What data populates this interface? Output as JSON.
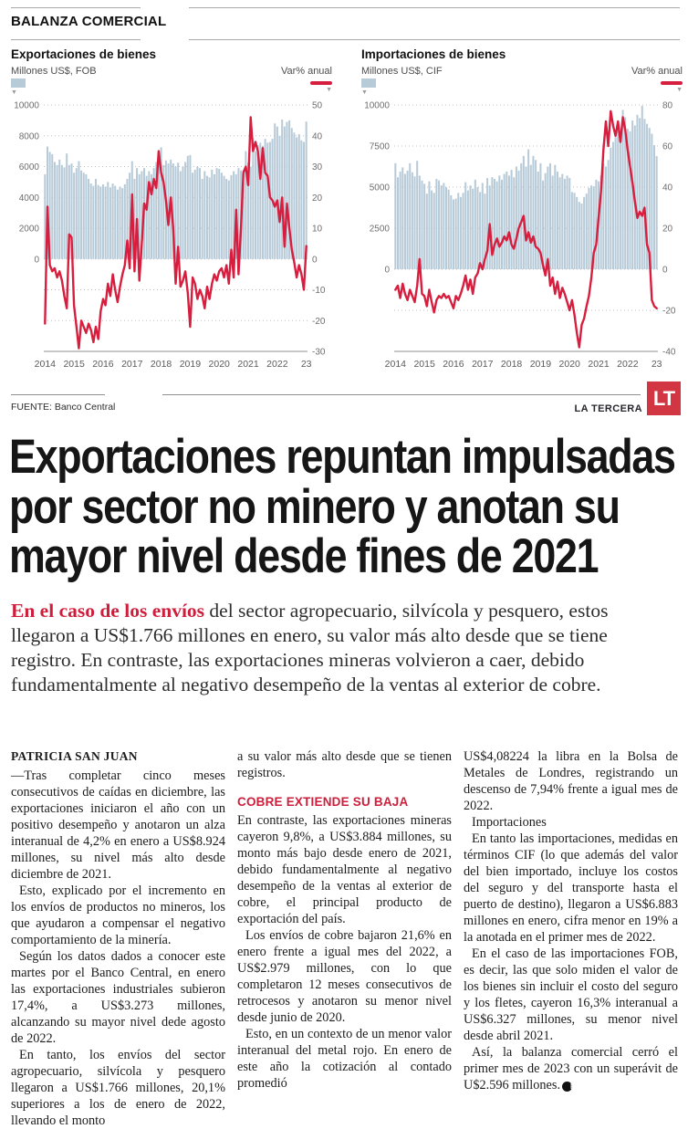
{
  "kicker": "BALANZA COMERCIAL",
  "source": "FUENTE: Banco Central",
  "brand": {
    "name": "LA TERCERA",
    "logo": "LT"
  },
  "headline_lines": "Exportaciones repuntan impulsadas\npor sector no minero y anotan su\nmayor nivel desde fines de 2021",
  "lede": {
    "lead_in": "En el caso de los envíos",
    "rest": " del sector agropecuario, silvícola y pesquero, estos llegaron a US$1.766 millones en enero, su valor más alto desde que se tiene registro. En contraste, las exportaciones mineras volvieron a caer, debido fundamentalmente al negativo desempeño de la ventas al exterior de cobre."
  },
  "columns": [
    {
      "blocks": [
        {
          "type": "byline",
          "text": "PATRICIA SAN JUAN"
        },
        {
          "type": "p",
          "noindent": true,
          "text": "—Tras completar cinco meses consecutivos de caídas en diciembre, las exportaciones iniciaron el año con un positivo desempeño y anotaron un alza interanual de 4,2% en enero a US$8.924 millones, su nivel más alto desde diciembre de 2021."
        },
        {
          "type": "p",
          "text": "Esto, explicado por el incremento en los envíos de productos no mineros, los que ayudaron a compensar el negativo comportamiento de la minería."
        },
        {
          "type": "p",
          "text": "Según los datos dados a conocer este martes por el Banco Central, en enero las exportaciones industriales subieron 17,4%, a US$3.273 millones, alcanzando su mayor nivel dede agosto de 2022."
        },
        {
          "type": "p",
          "text": "En tanto, los envíos del sector agropecuario, silvícola y pesquero llegaron a US$1.766 millones, 20,1% superiores a los de enero de 2022, llevando el monto"
        }
      ]
    },
    {
      "blocks": [
        {
          "type": "p",
          "noindent": true,
          "text": "a su valor más alto desde que se tienen registros."
        },
        {
          "type": "subhead",
          "text": "COBRE EXTIENDE SU BAJA"
        },
        {
          "type": "p",
          "noindent": true,
          "text": "En contraste, las exportaciones mineras cayeron 9,8%, a US$3.884 millones, su monto más bajo desde enero de 2021, debido fundamentalmente al negativo desempeño de la ventas al exterior de cobre, el principal producto de exportación del país."
        },
        {
          "type": "p",
          "text": "Los envíos de cobre bajaron 21,6% en enero frente a igual mes del 2022, a US$2.979 millones, con lo que completaron 12 meses consecutivos de retrocesos y anotaron su menor nivel desde junio de 2020."
        },
        {
          "type": "p",
          "text": "Esto, en un contexto de un menor valor interanual del metal rojo. En enero de este año la cotización al contado promedió"
        }
      ]
    },
    {
      "blocks": [
        {
          "type": "p",
          "noindent": true,
          "text": "US$4,08224 la libra en la Bolsa de Metales de Londres, registrando un descenso de 7,94% frente a igual mes de 2022."
        },
        {
          "type": "p",
          "text": "Importaciones"
        },
        {
          "type": "p",
          "text": "En tanto las importaciones, medidas en términos CIF (lo que además del valor del bien importado, incluye los costos del seguro y del transporte hasta el puerto de destino), llegaron a US$6.883 millones en enero, cifra menor en 19% a la anotada en el primer mes de 2022."
        },
        {
          "type": "p",
          "text": "En el caso de las importaciones FOB, es decir, las que solo miden el valor de los bienes sin incluir el costo del seguro y los fletes, cayeron 16,3% interanual a US$6.327 millones, su menor nivel desde abril 2021."
        },
        {
          "type": "p",
          "end": true,
          "text": "Así, la balanza comercial cerró el primer mes de 2023 con un superávit de U$2.596 millones."
        }
      ]
    }
  ],
  "colors": {
    "bar": "#b7cad8",
    "line": "#d71e3e",
    "accent_red": "#cf1e3c",
    "axis_text": "#6e6e6e",
    "grid": "#bfbfbf"
  },
  "chart_data": [
    {
      "type": "bar+line",
      "title": "Exportaciones de bienes",
      "bar_legend": "Millones US$, FOB",
      "line_legend": "Var% anual",
      "x_years": [
        "2014",
        "2015",
        "2016",
        "2017",
        "2018",
        "2019",
        "2020",
        "2021",
        "2022",
        "23"
      ],
      "left_axis": {
        "range": [
          0,
          10000
        ],
        "ticks": [
          0,
          2000,
          4000,
          6000,
          8000,
          10000
        ]
      },
      "right_axis": {
        "range": [
          -30,
          50
        ],
        "ticks": [
          -30,
          -20,
          -10,
          0,
          10,
          20,
          30,
          40,
          50
        ]
      },
      "bars_monthly_usd_m": [
        5500,
        7300,
        6950,
        6800,
        6300,
        6100,
        6450,
        6100,
        5950,
        6850,
        6100,
        6200,
        5600,
        5900,
        6350,
        5750,
        5600,
        5500,
        5200,
        4900,
        4750,
        5200,
        4800,
        4700,
        4850,
        4700,
        5000,
        4650,
        4900,
        4750,
        4500,
        4700,
        4600,
        4850,
        5200,
        5600,
        6350,
        5200,
        5900,
        5500,
        5700,
        5900,
        5400,
        5700,
        5500,
        5900,
        6300,
        6900,
        7250,
        6100,
        6400,
        6200,
        6450,
        6200,
        6000,
        6250,
        5700,
        6000,
        6300,
        6700,
        6750,
        5600,
        5800,
        6000,
        5900,
        5200,
        5700,
        5400,
        5300,
        5800,
        5500,
        5900,
        5850,
        5600,
        5400,
        5200,
        5100,
        5450,
        5700,
        5500,
        5900,
        5750,
        5800,
        7000,
        6250,
        6000,
        7850,
        7000,
        7400,
        7550,
        7350,
        7800,
        7550,
        7600,
        7800,
        8800,
        8600,
        8000,
        9050,
        8600,
        8900,
        9000,
        8500,
        8200,
        7900,
        8100,
        7700,
        7600,
        8924
      ],
      "line_var_pct": [
        -21,
        17,
        -2,
        -4,
        -3,
        -6,
        -4,
        -7,
        -12,
        -16,
        8,
        7,
        -15,
        -22,
        -29,
        -20,
        -22,
        -24,
        -21,
        -23,
        -27,
        -22,
        -26,
        -17,
        -13,
        -15,
        -8,
        -12,
        -5,
        -10,
        -14,
        -9,
        -5,
        -2,
        6,
        -3,
        21,
        -4,
        13,
        -7,
        5,
        18,
        16,
        25,
        21,
        26,
        23,
        35,
        28,
        25,
        19,
        11,
        20,
        10,
        -8,
        4,
        -9,
        -7,
        -4,
        -11,
        -22,
        -6,
        -8,
        -13,
        -10,
        -12,
        -16,
        -9,
        -13,
        -8,
        -5,
        -7,
        -4,
        -3,
        -6,
        -2,
        -8,
        3,
        -6,
        16,
        -5,
        10,
        28,
        30,
        24,
        46,
        35,
        38,
        35,
        26,
        36,
        28,
        27,
        20,
        19,
        17,
        19,
        12,
        20,
        4,
        18,
        10,
        3,
        -1,
        -6,
        -2,
        -5,
        -10,
        4.2
      ]
    },
    {
      "type": "bar+line",
      "title": "Importaciones de bienes",
      "bar_legend": "Millones US$, CIF",
      "line_legend": "Var% anual",
      "x_years": [
        "2014",
        "2015",
        "2016",
        "2017",
        "2018",
        "2019",
        "2020",
        "2021",
        "2022",
        "23"
      ],
      "left_axis": {
        "range": [
          0,
          10000
        ],
        "ticks": [
          0,
          2500,
          5000,
          7500,
          10000
        ]
      },
      "right_axis": {
        "range": [
          -40,
          80
        ],
        "ticks": [
          -40,
          -20,
          0,
          20,
          40,
          60,
          80
        ]
      },
      "bars_monthly_usd_m": [
        6450,
        5600,
        5950,
        6200,
        5800,
        6000,
        6450,
        5900,
        5650,
        6600,
        5700,
        5400,
        5200,
        4600,
        5350,
        4800,
        4650,
        5500,
        5400,
        5100,
        5250,
        5000,
        4850,
        4500,
        4250,
        4300,
        4650,
        4400,
        4650,
        5300,
        4800,
        5100,
        4900,
        5450,
        5000,
        4700,
        5250,
        4600,
        5550,
        5100,
        5600,
        5500,
        5350,
        5700,
        5450,
        5800,
        5950,
        5700,
        6050,
        5600,
        6250,
        6000,
        6450,
        6900,
        6250,
        7300,
        6350,
        6900,
        6650,
        5950,
        6450,
        5400,
        5850,
        6250,
        6450,
        5700,
        6350,
        5950,
        5600,
        5800,
        5500,
        5700,
        5550,
        4700,
        4650,
        4400,
        4100,
        4000,
        4400,
        4600,
        4950,
        5100,
        5050,
        5450,
        5350,
        5700,
        6450,
        6250,
        6650,
        7400,
        7750,
        8050,
        8650,
        8250,
        9700,
        9250,
        8550,
        8400,
        9050,
        8750,
        9400,
        9200,
        9950,
        9150,
        8850,
        8600,
        8250,
        7550,
        6883
      ],
      "line_var_pct": [
        -10,
        -8,
        -14,
        -7,
        -12,
        -15,
        -10,
        -13,
        -16,
        -8,
        5,
        -12,
        -13,
        -18,
        -10,
        -16,
        -21,
        -15,
        -13,
        -14,
        -12,
        -14,
        -13,
        -16,
        -19,
        -13,
        -15,
        -12,
        -8,
        -3,
        -10,
        -5,
        -12,
        -4,
        -2,
        3,
        0,
        5,
        9,
        22,
        7,
        12,
        15,
        11,
        13,
        16,
        14,
        18,
        12,
        10,
        15,
        20,
        23,
        26,
        14,
        18,
        13,
        16,
        11,
        10,
        8,
        2,
        -3,
        5,
        -8,
        -4,
        -12,
        -6,
        -14,
        -9,
        -12,
        -16,
        -20,
        -15,
        -22,
        -31,
        -38,
        -27,
        -24,
        -18,
        -13,
        -4,
        8,
        12,
        25,
        38,
        58,
        72,
        60,
        77,
        70,
        65,
        72,
        62,
        74,
        68,
        58,
        50,
        42,
        33,
        25,
        28,
        26,
        30,
        12,
        8,
        -15,
        -18,
        -19
      ]
    }
  ]
}
